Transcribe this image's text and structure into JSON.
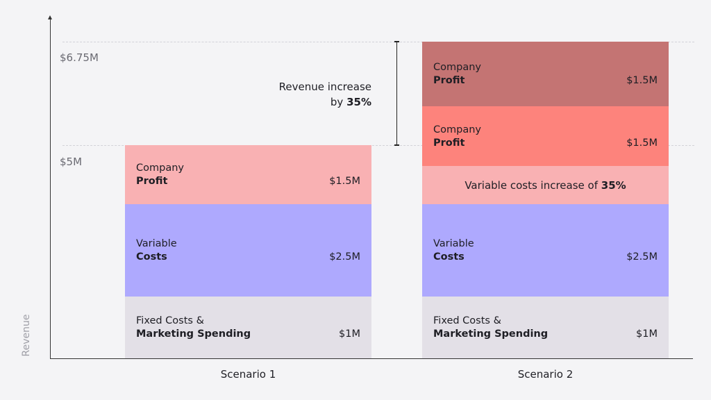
{
  "axis": {
    "y_label": "Revenue",
    "levels": [
      "$6.75M",
      "$5M"
    ]
  },
  "annotation": {
    "line1": "Revenue increase",
    "line2": [
      "by",
      "35%"
    ]
  },
  "scenarios": [
    {
      "label": "Scenario 1",
      "segments": [
        {
          "line1": "Company",
          "line2": "Profit",
          "value": "$1.5M"
        },
        {
          "line1": "Variable",
          "line2": "Costs",
          "value": "$2.5M"
        },
        {
          "line1": "Fixed Costs &",
          "line2": "Marketing Spending",
          "value": "$1M"
        }
      ]
    },
    {
      "label": "Scenario 2",
      "segments": [
        {
          "line1": "Company",
          "line2": "Profit",
          "value": "$1.5M"
        },
        {
          "line1": "Company",
          "line2": "Profit",
          "value": "$1.5M"
        },
        {
          "text": "Variable costs increase of",
          "bold": "35%"
        },
        {
          "line1": "Variable",
          "line2": "Costs",
          "value": "$2.5M"
        },
        {
          "line1": "Fixed Costs &",
          "line2": "Marketing Spending",
          "value": "$1M"
        }
      ]
    }
  ]
}
